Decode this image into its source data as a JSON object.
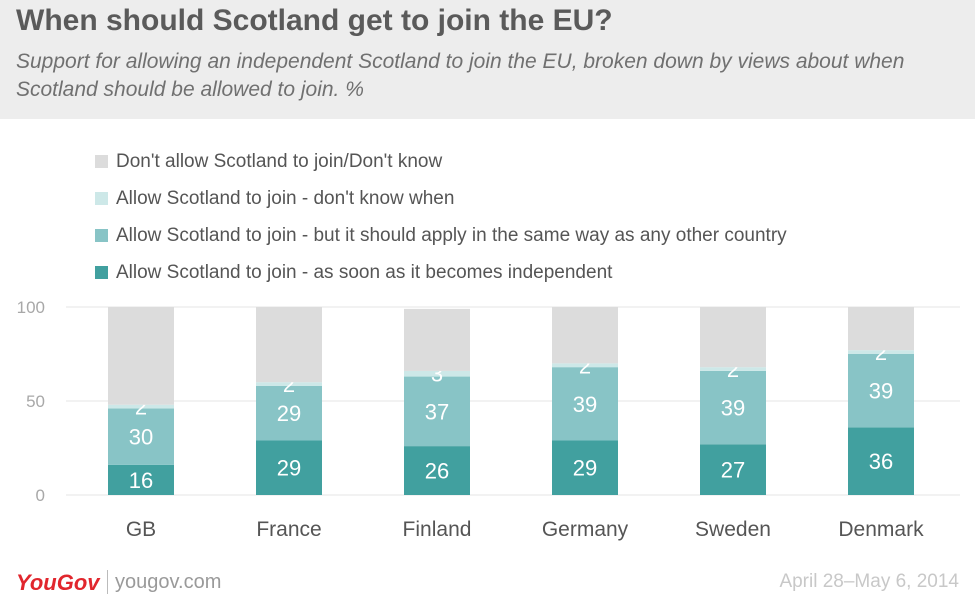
{
  "title": "When should Scotland get to join the EU?",
  "subtitle": "Support for allowing an independent Scotland to join the EU, broken down by views about when Scotland should be allowed to join. %",
  "colors": {
    "header_bg": "#ededed",
    "dont_allow": "#dcdcdc",
    "dont_know_when": "#cde8e8",
    "same_way": "#88c4c6",
    "asap": "#41a09f",
    "logo": "#e1262d"
  },
  "chart_data": {
    "type": "bar",
    "stacked": true,
    "categories": [
      "GB",
      "France",
      "Finland",
      "Germany",
      "Sweden",
      "Denmark"
    ],
    "ylim": [
      0,
      100
    ],
    "yticks": [
      0,
      50,
      100
    ],
    "grid": true,
    "legend_position": "top-left",
    "series": [
      {
        "name": "Allow Scotland to join - as soon as it becomes independent",
        "values": [
          16,
          29,
          26,
          29,
          27,
          36
        ]
      },
      {
        "name": "Allow Scotland to join - but it should apply in the same way as any other country",
        "values": [
          30,
          29,
          37,
          39,
          39,
          39
        ]
      },
      {
        "name": "Allow Scotland to join - don't know when",
        "values": [
          2,
          2,
          3,
          2,
          2,
          2
        ]
      },
      {
        "name": "Don't allow Scotland to join/Don't know",
        "values": [
          52,
          40,
          33,
          30,
          32,
          23
        ]
      }
    ]
  },
  "legend": [
    {
      "label": "Don't allow Scotland to join/Don't know",
      "color": "#dcdcdc"
    },
    {
      "label": "Allow Scotland to join - don't know when",
      "color": "#cde8e8"
    },
    {
      "label": "Allow Scotland to join - but it should apply in the same way as any other country",
      "color": "#88c4c6"
    },
    {
      "label": "Allow Scotland to join - as soon as it becomes independent",
      "color": "#41a09f"
    }
  ],
  "footer": {
    "logo": "YouGov",
    "site": "yougov.com",
    "date": "April 28–May 6, 2014"
  }
}
